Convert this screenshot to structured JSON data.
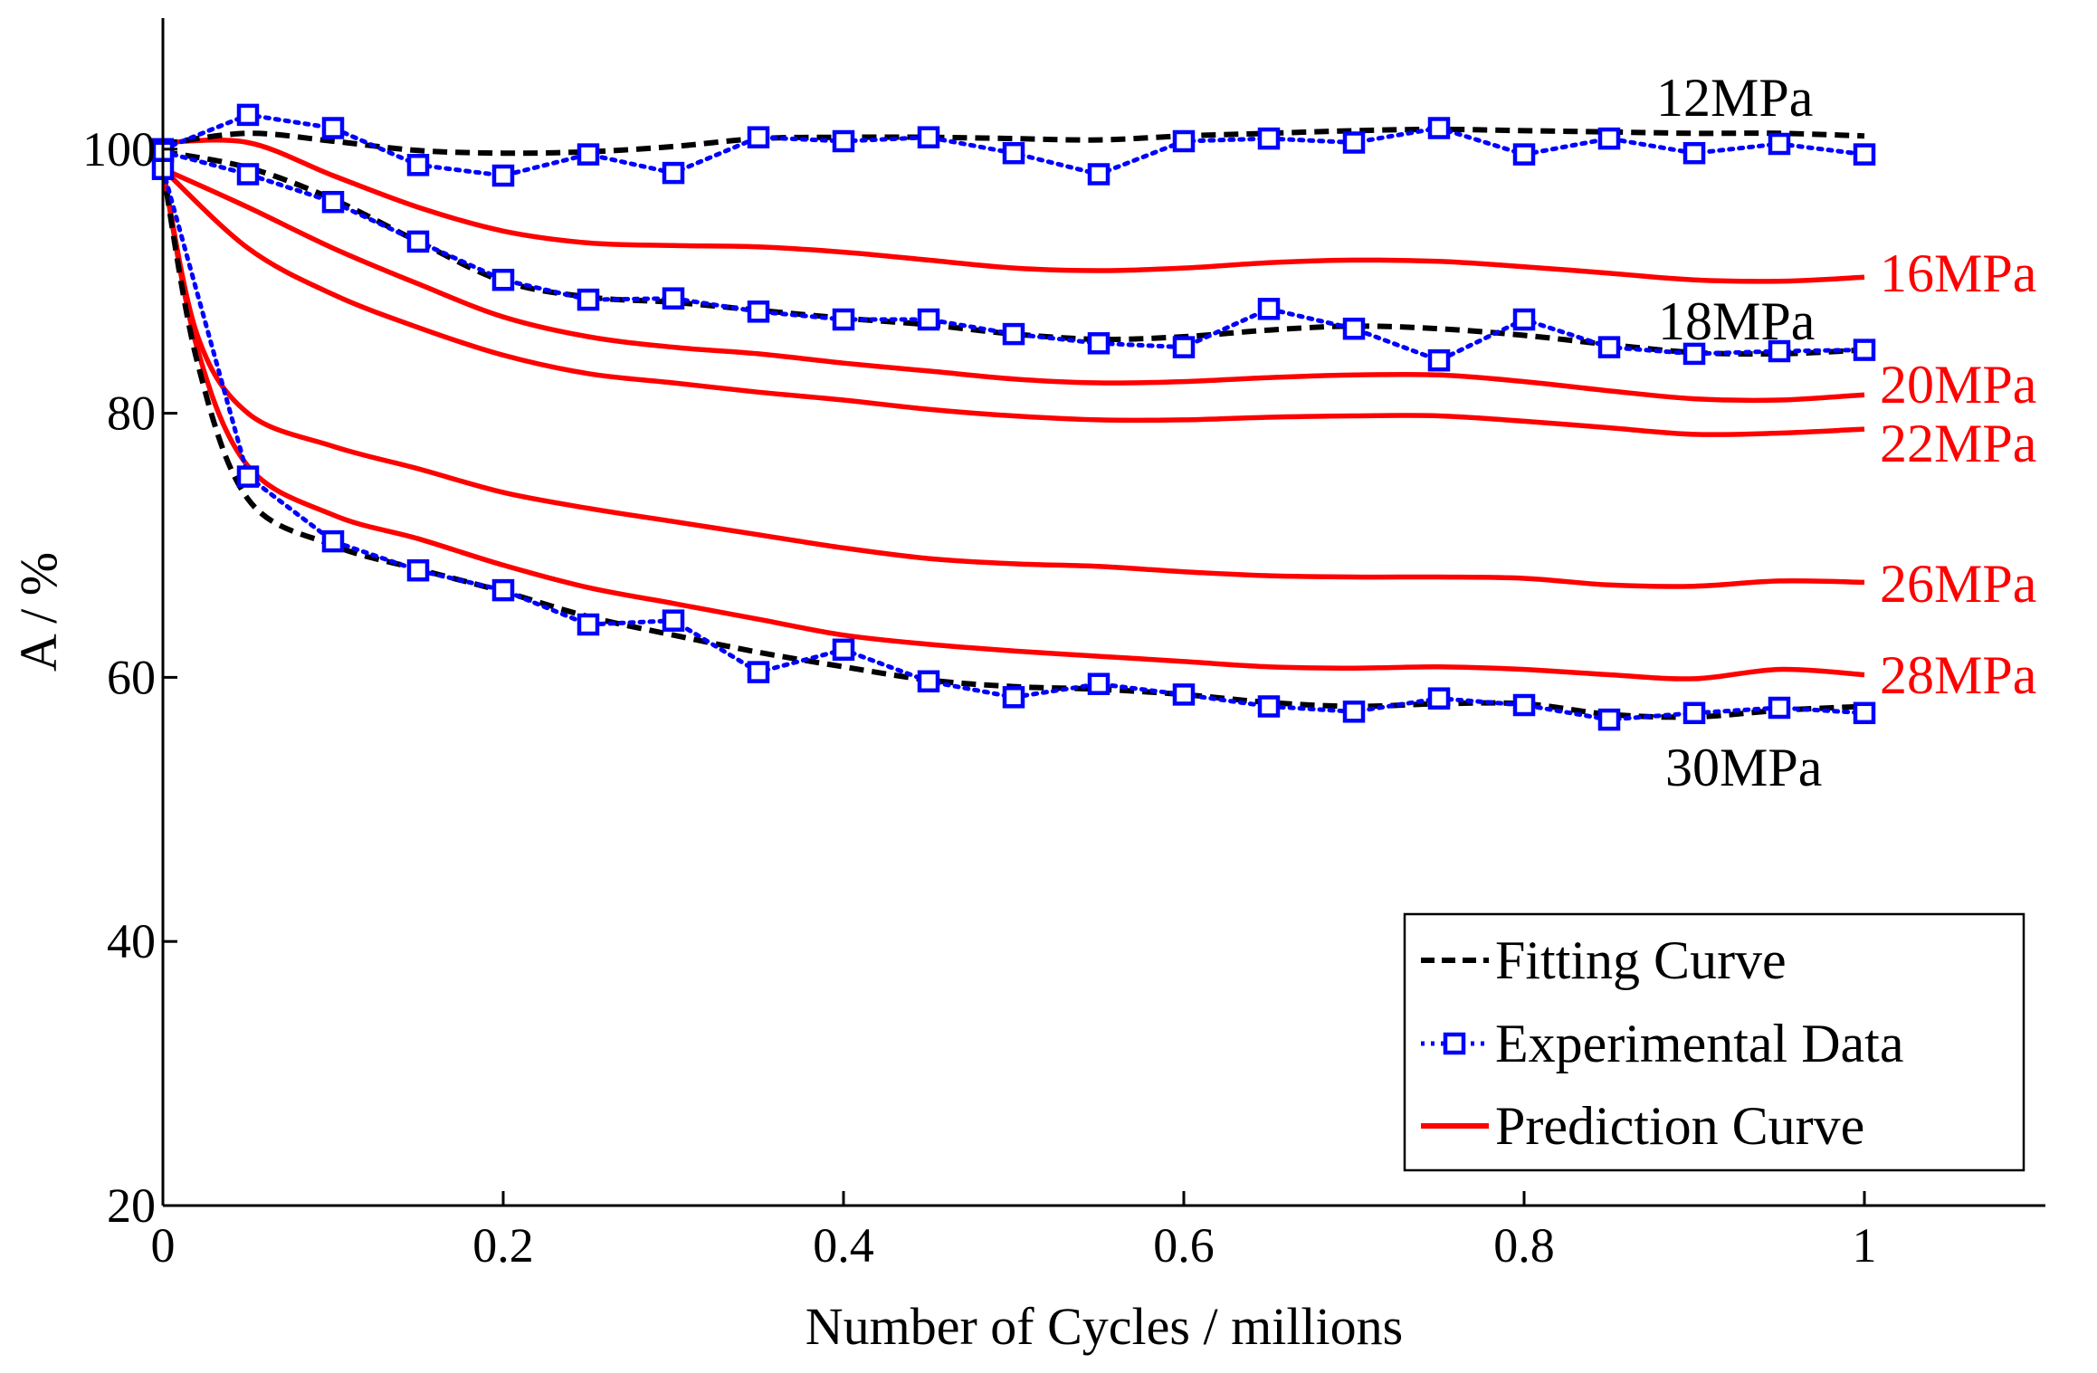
{
  "chart_data": {
    "type": "line",
    "title": "",
    "xlabel": "Number of Cycles / millions",
    "ylabel": "A / %",
    "xlim": [
      0,
      1.1
    ],
    "ylim": [
      20,
      110
    ],
    "xticks": [
      0,
      0.2,
      0.4,
      0.6,
      0.8,
      1
    ],
    "xtick_labels": [
      "0",
      "0.2",
      "0.4",
      "0.6",
      "0.8",
      "1"
    ],
    "yticks": [
      20,
      40,
      60,
      80,
      100
    ],
    "ytick_labels": [
      "20",
      "40",
      "60",
      "80",
      "100"
    ],
    "grid": false,
    "legend_position": "bottom-right",
    "legend": [
      {
        "label": "Fitting Curve",
        "style": "dashed",
        "color": "#000000"
      },
      {
        "label": "Experimental Data",
        "style": "dotted-square-markers",
        "color": "#0000ff"
      },
      {
        "label": "Prediction Curve",
        "style": "solid",
        "color": "#ff0000"
      }
    ],
    "colors": {
      "fitting": "#000000",
      "experimental": "#0000ff",
      "prediction": "#ff0000"
    },
    "series": [
      {
        "name": "12MPa Fitting Curve",
        "kind": "fitting",
        "label": "12MPa",
        "label_color": "#000000",
        "x": [
          0,
          0.05,
          0.1,
          0.15,
          0.2,
          0.25,
          0.3,
          0.35,
          0.4,
          0.45,
          0.5,
          0.55,
          0.6,
          0.65,
          0.7,
          0.75,
          0.8,
          0.85,
          0.9,
          0.95,
          1.0
        ],
        "values": [
          100.4,
          101.2,
          100.6,
          99.9,
          99.7,
          99.8,
          100.2,
          100.8,
          100.9,
          100.9,
          100.8,
          100.7,
          101.0,
          101.2,
          101.4,
          101.5,
          101.4,
          101.3,
          101.2,
          101.2,
          101.0
        ]
      },
      {
        "name": "12MPa Experimental Data",
        "kind": "experimental",
        "x": [
          0,
          0.05,
          0.1,
          0.15,
          0.2,
          0.25,
          0.3,
          0.35,
          0.4,
          0.45,
          0.5,
          0.55,
          0.6,
          0.65,
          0.7,
          0.75,
          0.8,
          0.85,
          0.9,
          0.95,
          1.0
        ],
        "values": [
          100.0,
          102.6,
          101.6,
          98.8,
          98.0,
          99.6,
          98.2,
          100.9,
          100.6,
          100.9,
          99.7,
          98.1,
          100.6,
          100.8,
          100.5,
          101.6,
          99.6,
          100.8,
          99.7,
          100.4,
          99.6
        ]
      },
      {
        "name": "18MPa Fitting Curve",
        "kind": "fitting",
        "label": "18MPa",
        "label_color": "#000000",
        "x": [
          0,
          0.05,
          0.1,
          0.15,
          0.2,
          0.25,
          0.3,
          0.35,
          0.4,
          0.45,
          0.5,
          0.55,
          0.6,
          0.65,
          0.7,
          0.75,
          0.8,
          0.85,
          0.9,
          0.95,
          1.0
        ],
        "values": [
          99.8,
          98.6,
          96.2,
          93.0,
          90.0,
          88.8,
          88.4,
          87.8,
          87.2,
          86.7,
          86.0,
          85.6,
          85.8,
          86.3,
          86.6,
          86.4,
          85.9,
          85.2,
          84.6,
          84.5,
          84.8
        ]
      },
      {
        "name": "18MPa Experimental Data",
        "kind": "experimental",
        "x": [
          0,
          0.05,
          0.1,
          0.15,
          0.2,
          0.25,
          0.3,
          0.35,
          0.4,
          0.45,
          0.5,
          0.55,
          0.6,
          0.65,
          0.7,
          0.75,
          0.8,
          0.85,
          0.9,
          0.95,
          1.0
        ],
        "values": [
          99.8,
          98.1,
          96.0,
          93.0,
          90.1,
          88.6,
          88.7,
          87.7,
          87.1,
          87.1,
          86.0,
          85.3,
          85.0,
          87.9,
          86.4,
          84.0,
          87.1,
          85.0,
          84.5,
          84.7,
          84.8
        ]
      },
      {
        "name": "30MPa Fitting Curve",
        "kind": "fitting",
        "label": "30MPa",
        "label_color": "#000000",
        "x": [
          0,
          0.02,
          0.05,
          0.1,
          0.15,
          0.2,
          0.25,
          0.3,
          0.35,
          0.4,
          0.45,
          0.5,
          0.55,
          0.6,
          0.65,
          0.7,
          0.75,
          0.8,
          0.85,
          0.9,
          0.95,
          1.0
        ],
        "values": [
          98.5,
          84.0,
          73.5,
          70.0,
          68.2,
          66.5,
          64.6,
          63.2,
          61.9,
          60.8,
          59.8,
          59.3,
          59.1,
          58.7,
          58.1,
          57.8,
          58.0,
          58.0,
          57.2,
          57.0,
          57.5,
          57.8
        ]
      },
      {
        "name": "30MPa Experimental Data",
        "kind": "experimental",
        "x": [
          0,
          0.05,
          0.1,
          0.15,
          0.2,
          0.25,
          0.3,
          0.35,
          0.4,
          0.45,
          0.5,
          0.55,
          0.6,
          0.65,
          0.7,
          0.75,
          0.8,
          0.85,
          0.9,
          0.95,
          1.0
        ],
        "values": [
          98.5,
          75.2,
          70.3,
          68.1,
          66.6,
          64.0,
          64.3,
          60.4,
          62.1,
          59.7,
          58.5,
          59.5,
          58.7,
          57.8,
          57.4,
          58.4,
          57.9,
          56.8,
          57.3,
          57.7,
          57.3
        ]
      },
      {
        "name": "16MPa Prediction Curve",
        "kind": "prediction",
        "label": "16MPa",
        "label_color": "#ff0000",
        "x": [
          0,
          0.05,
          0.1,
          0.15,
          0.2,
          0.25,
          0.3,
          0.35,
          0.4,
          0.45,
          0.5,
          0.55,
          0.6,
          0.65,
          0.7,
          0.75,
          0.8,
          0.85,
          0.9,
          0.95,
          1.0
        ],
        "values": [
          100.5,
          100.5,
          98.0,
          95.6,
          93.8,
          92.9,
          92.7,
          92.6,
          92.2,
          91.6,
          91.0,
          90.8,
          91.0,
          91.4,
          91.6,
          91.5,
          91.1,
          90.6,
          90.1,
          90.0,
          90.3
        ]
      },
      {
        "name": "20MPa Prediction Curve",
        "kind": "prediction",
        "label": "20MPa",
        "label_color": "#ff0000",
        "x": [
          0,
          0.05,
          0.1,
          0.15,
          0.2,
          0.25,
          0.3,
          0.35,
          0.4,
          0.45,
          0.5,
          0.55,
          0.6,
          0.65,
          0.7,
          0.75,
          0.8,
          0.85,
          0.9,
          0.95,
          1.0
        ],
        "values": [
          98.5,
          95.6,
          92.5,
          89.8,
          87.3,
          85.8,
          85.0,
          84.5,
          83.8,
          83.2,
          82.6,
          82.3,
          82.4,
          82.7,
          82.9,
          82.9,
          82.4,
          81.7,
          81.1,
          81.0,
          81.4
        ]
      },
      {
        "name": "22MPa Prediction Curve",
        "kind": "prediction",
        "label": "22MPa",
        "label_color": "#ff0000",
        "x": [
          0,
          0.05,
          0.1,
          0.15,
          0.2,
          0.25,
          0.3,
          0.35,
          0.4,
          0.45,
          0.5,
          0.55,
          0.6,
          0.65,
          0.7,
          0.75,
          0.8,
          0.85,
          0.9,
          0.95,
          1.0
        ],
        "values": [
          98.5,
          92.5,
          89.0,
          86.5,
          84.4,
          83.0,
          82.3,
          81.6,
          81.0,
          80.3,
          79.8,
          79.5,
          79.5,
          79.7,
          79.8,
          79.8,
          79.4,
          78.9,
          78.4,
          78.5,
          78.8
        ]
      },
      {
        "name": "26MPa Prediction Curve",
        "kind": "prediction",
        "label": "26MPa",
        "label_color": "#ff0000",
        "x": [
          0,
          0.02,
          0.05,
          0.1,
          0.15,
          0.2,
          0.25,
          0.3,
          0.35,
          0.4,
          0.45,
          0.5,
          0.55,
          0.6,
          0.65,
          0.7,
          0.75,
          0.8,
          0.85,
          0.9,
          0.95,
          1.0
        ],
        "values": [
          98.5,
          86.0,
          80.0,
          77.5,
          75.8,
          74.0,
          72.8,
          71.8,
          70.8,
          69.8,
          69.0,
          68.6,
          68.4,
          68.0,
          67.7,
          67.6,
          67.6,
          67.5,
          67.0,
          66.9,
          67.3,
          67.2
        ]
      },
      {
        "name": "28MPa Prediction Curve",
        "kind": "prediction",
        "label": "28MPa",
        "label_color": "#ff0000",
        "x": [
          0,
          0.02,
          0.05,
          0.1,
          0.15,
          0.2,
          0.25,
          0.3,
          0.35,
          0.4,
          0.45,
          0.5,
          0.55,
          0.6,
          0.65,
          0.7,
          0.75,
          0.8,
          0.85,
          0.9,
          0.95,
          1.0
        ],
        "values": [
          98.5,
          85.0,
          76.0,
          72.3,
          70.5,
          68.5,
          66.8,
          65.6,
          64.4,
          63.2,
          62.5,
          62.0,
          61.6,
          61.2,
          60.8,
          60.7,
          60.8,
          60.6,
          60.2,
          59.9,
          60.6,
          60.2
        ]
      }
    ]
  }
}
